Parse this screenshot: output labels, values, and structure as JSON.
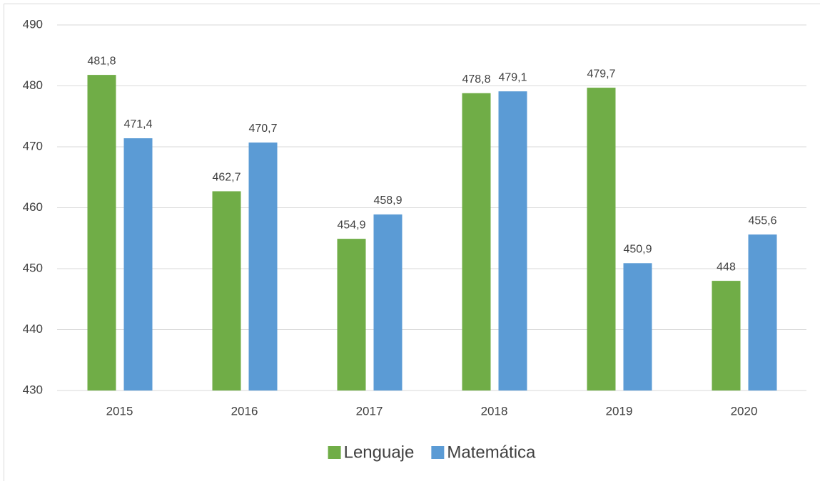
{
  "chart_data": {
    "type": "bar",
    "categories": [
      "2015",
      "2016",
      "2017",
      "2018",
      "2019",
      "2020"
    ],
    "series": [
      {
        "name": "Lenguaje",
        "color": "#70ad47",
        "values": [
          481.8,
          462.7,
          454.9,
          478.8,
          479.7,
          448
        ],
        "value_labels": [
          "481,8",
          "462,7",
          "454,9",
          "478,8",
          "479,7",
          "448"
        ]
      },
      {
        "name": "Matemática",
        "color": "#5b9bd5",
        "values": [
          471.4,
          470.7,
          458.9,
          479.1,
          450.9,
          455.6
        ],
        "value_labels": [
          "471,4",
          "470,7",
          "458,9",
          "479,1",
          "450,9",
          "455,6"
        ]
      }
    ],
    "ylim": [
      430,
      490
    ],
    "yticks": [
      430,
      440,
      450,
      460,
      470,
      480,
      490
    ],
    "grid": true,
    "legend": "bottom"
  }
}
